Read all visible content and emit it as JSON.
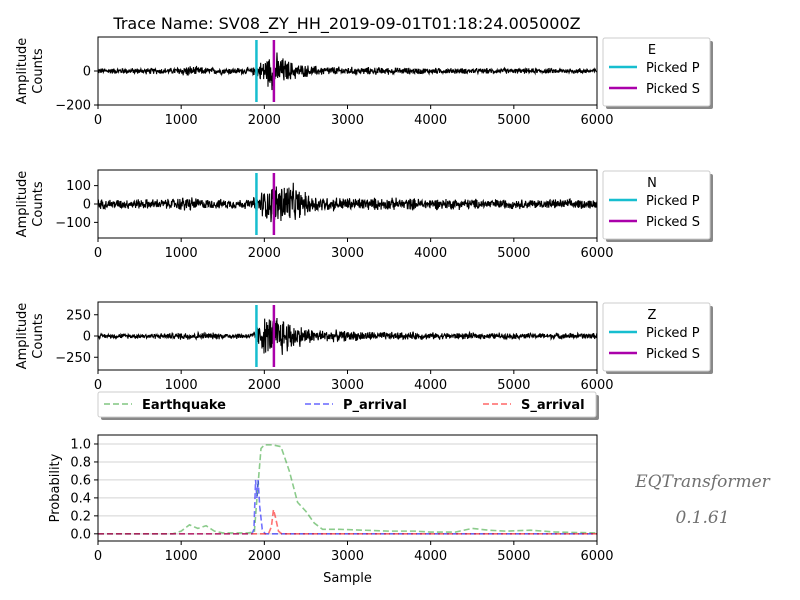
{
  "title": "Trace Name: SV08_ZY_HH_2019-09-01T01:18:24.005000Z",
  "signature": {
    "name": "EQTransformer",
    "version": "0.1.61"
  },
  "colors": {
    "trace": "#000000",
    "picked_p": "#17becf",
    "picked_s": "#aa00aa",
    "earthquake": "#2ca02c",
    "p_arrival": "#0000ff",
    "s_arrival": "#ff0000",
    "grid": "#d3d3d3"
  },
  "chart_data": [
    {
      "type": "line",
      "component": "E",
      "ylabel": [
        "Amplitude",
        "Counts"
      ],
      "xlim": [
        0,
        6000
      ],
      "ylim": [
        -200,
        200
      ],
      "xticks": [
        "0",
        "1000",
        "2000",
        "3000",
        "4000",
        "5000",
        "6000"
      ],
      "yticks": [
        {
          "v": 0,
          "label": "0"
        },
        {
          "v": -200,
          "label": "−200"
        }
      ],
      "envelope": [
        [
          0,
          20
        ],
        [
          900,
          22
        ],
        [
          1050,
          38
        ],
        [
          1300,
          25
        ],
        [
          1850,
          22
        ],
        [
          1920,
          45
        ],
        [
          2000,
          90
        ],
        [
          2080,
          125
        ],
        [
          2130,
          130
        ],
        [
          2200,
          100
        ],
        [
          2300,
          70
        ],
        [
          2450,
          45
        ],
        [
          2650,
          32
        ],
        [
          3000,
          28
        ],
        [
          3500,
          24
        ],
        [
          4200,
          20
        ],
        [
          5000,
          18
        ],
        [
          6000,
          18
        ]
      ],
      "picks": [
        {
          "name": "Picked P",
          "x": 1905
        },
        {
          "name": "Picked S",
          "x": 2115
        }
      ],
      "legend": {
        "title": "E",
        "entries": [
          "Picked P",
          "Picked S"
        ]
      }
    },
    {
      "type": "line",
      "component": "N",
      "ylabel": [
        "Amplitude",
        "Counts"
      ],
      "xlim": [
        0,
        6000
      ],
      "ylim": [
        -185,
        185
      ],
      "xticks": [
        "0",
        "1000",
        "2000",
        "3000",
        "4000",
        "5000",
        "6000"
      ],
      "yticks": [
        {
          "v": 100,
          "label": "100"
        },
        {
          "v": 0,
          "label": "0"
        },
        {
          "v": -100,
          "label": "−100"
        }
      ],
      "envelope": [
        [
          0,
          30
        ],
        [
          900,
          32
        ],
        [
          1050,
          50
        ],
        [
          1300,
          30
        ],
        [
          1850,
          30
        ],
        [
          1920,
          70
        ],
        [
          2050,
          110
        ],
        [
          2200,
          150
        ],
        [
          2260,
          155
        ],
        [
          2350,
          120
        ],
        [
          2500,
          70
        ],
        [
          2700,
          48
        ],
        [
          3000,
          42
        ],
        [
          3500,
          38
        ],
        [
          4200,
          35
        ],
        [
          5000,
          30
        ],
        [
          6000,
          30
        ]
      ],
      "picks": [
        {
          "name": "Picked P",
          "x": 1905
        },
        {
          "name": "Picked S",
          "x": 2115
        }
      ],
      "legend": {
        "title": "N",
        "entries": [
          "Picked P",
          "Picked S"
        ]
      }
    },
    {
      "type": "line",
      "component": "Z",
      "ylabel": [
        "Amplitude",
        "Counts"
      ],
      "xlim": [
        0,
        6000
      ],
      "ylim": [
        -400,
        400
      ],
      "xticks": [
        "0",
        "1000",
        "2000",
        "3000",
        "4000",
        "5000",
        "6000"
      ],
      "yticks": [
        {
          "v": 250,
          "label": "250"
        },
        {
          "v": 0,
          "label": "0"
        },
        {
          "v": -250,
          "label": "−250"
        }
      ],
      "envelope": [
        [
          0,
          30
        ],
        [
          900,
          40
        ],
        [
          1050,
          60
        ],
        [
          1300,
          45
        ],
        [
          1850,
          40
        ],
        [
          1920,
          150
        ],
        [
          2000,
          250
        ],
        [
          2150,
          300
        ],
        [
          2250,
          260
        ],
        [
          2400,
          150
        ],
        [
          2600,
          90
        ],
        [
          3000,
          70
        ],
        [
          3500,
          55
        ],
        [
          4200,
          45
        ],
        [
          5000,
          40
        ],
        [
          6000,
          40
        ]
      ],
      "picks": [
        {
          "name": "Picked P",
          "x": 1905
        },
        {
          "name": "Picked S",
          "x": 2115
        }
      ],
      "legend": {
        "title": "Z",
        "entries": [
          "Picked P",
          "Picked S"
        ]
      }
    },
    {
      "type": "line",
      "xlabel": "Sample",
      "ylabel": "Probability",
      "xlim": [
        0,
        6000
      ],
      "ylim": [
        -0.08,
        1.1
      ],
      "grid": "horizontal",
      "xticks": [
        "0",
        "1000",
        "2000",
        "3000",
        "4000",
        "5000",
        "6000"
      ],
      "yticks": [
        {
          "v": 0,
          "label": "0.0"
        },
        {
          "v": 0.2,
          "label": "0.2"
        },
        {
          "v": 0.4,
          "label": "0.4"
        },
        {
          "v": 0.6,
          "label": "0.6"
        },
        {
          "v": 0.8,
          "label": "0.8"
        },
        {
          "v": 1.0,
          "label": "1.0"
        }
      ],
      "legend": {
        "placement": "above",
        "entries": [
          "Earthquake",
          "P_arrival",
          "S_arrival"
        ]
      },
      "series": [
        {
          "name": "Earthquake",
          "x": [
            0,
            900,
            1000,
            1100,
            1200,
            1300,
            1400,
            1500,
            1800,
            1880,
            1920,
            1960,
            2000,
            2100,
            2200,
            2300,
            2400,
            2500,
            2600,
            2700,
            2900,
            3200,
            3500,
            3800,
            4000,
            4300,
            4500,
            4700,
            4900,
            5200,
            5500,
            6000
          ],
          "y": [
            0.0,
            0.0,
            0.03,
            0.1,
            0.06,
            0.09,
            0.03,
            0.01,
            0.01,
            0.02,
            0.5,
            0.95,
            0.99,
            0.99,
            0.97,
            0.7,
            0.35,
            0.25,
            0.12,
            0.05,
            0.05,
            0.04,
            0.03,
            0.03,
            0.02,
            0.02,
            0.06,
            0.04,
            0.03,
            0.04,
            0.02,
            0.01
          ]
        },
        {
          "name": "P_arrival",
          "x": [
            0,
            1850,
            1875,
            1895,
            1910,
            1925,
            1945,
            1975,
            2010,
            6000
          ],
          "y": [
            0.0,
            0.0,
            0.05,
            0.6,
            0.4,
            0.6,
            0.3,
            0.05,
            0.0,
            0.0
          ]
        },
        {
          "name": "S_arrival",
          "x": [
            0,
            2050,
            2085,
            2110,
            2135,
            2170,
            2210,
            6000
          ],
          "y": [
            0.0,
            0.0,
            0.08,
            0.27,
            0.18,
            0.03,
            0.0,
            0.0
          ]
        }
      ]
    }
  ]
}
